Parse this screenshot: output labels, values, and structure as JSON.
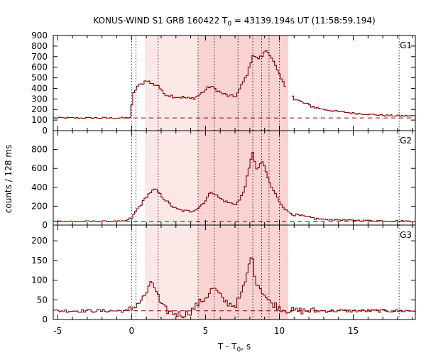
{
  "chart_data": {
    "type": "line",
    "title": {
      "prefix": "KONUS-WIND S1 GRB 160422 T",
      "sub": "0",
      "suffix": " = 43139.194s UT (11:58:59.194)"
    },
    "xlabel": {
      "prefix": "T - T",
      "sub": "0",
      "suffix": ", s"
    },
    "ylabel": "counts / 128 ms",
    "xlim": [
      -5.3,
      19.2
    ],
    "xticks": [
      -5,
      0,
      5,
      10,
      15
    ],
    "light_band": [
      0.9,
      10.6
    ],
    "dark_band": [
      4.5,
      10.6
    ],
    "vlines": [
      0.0,
      0.3,
      1.8,
      4.5,
      5.6,
      7.2,
      8.2,
      8.8,
      9.3,
      10.0,
      18.1
    ],
    "colors": {
      "line": "#8b0000",
      "light_band": "#fde8e8",
      "dark_band": "#f9d2d2"
    },
    "panels": [
      {
        "label": "G1",
        "ylim": [
          0,
          900
        ],
        "yticks": [
          0,
          100,
          200,
          300,
          400,
          500,
          600,
          700,
          800,
          900
        ],
        "background": 120,
        "breaks": [
          [
            10.5,
            10.8
          ]
        ],
        "knots": [
          [
            -5.3,
            120
          ],
          [
            -0.4,
            120
          ],
          [
            -0.1,
            125
          ],
          [
            0.0,
            220
          ],
          [
            0.15,
            360
          ],
          [
            0.4,
            420
          ],
          [
            0.7,
            440
          ],
          [
            1.0,
            480
          ],
          [
            1.4,
            440
          ],
          [
            1.8,
            430
          ],
          [
            2.1,
            360
          ],
          [
            2.4,
            340
          ],
          [
            3.0,
            320
          ],
          [
            3.5,
            315
          ],
          [
            4.0,
            300
          ],
          [
            4.4,
            320
          ],
          [
            4.8,
            360
          ],
          [
            5.3,
            420
          ],
          [
            5.6,
            400
          ],
          [
            6.0,
            360
          ],
          [
            6.5,
            330
          ],
          [
            7.0,
            320
          ],
          [
            7.2,
            360
          ],
          [
            7.6,
            470
          ],
          [
            7.9,
            560
          ],
          [
            8.2,
            720
          ],
          [
            8.5,
            680
          ],
          [
            8.8,
            700
          ],
          [
            9.1,
            760
          ],
          [
            9.4,
            720
          ],
          [
            9.7,
            620
          ],
          [
            10.0,
            520
          ],
          [
            10.3,
            440
          ],
          [
            10.5,
            400
          ],
          [
            10.8,
            380
          ],
          [
            11.0,
            300
          ],
          [
            11.5,
            270
          ],
          [
            12.0,
            240
          ],
          [
            13.0,
            200
          ],
          [
            14.0,
            180
          ],
          [
            15.0,
            165
          ],
          [
            16.0,
            155
          ],
          [
            17.0,
            145
          ],
          [
            18.0,
            140
          ],
          [
            19.2,
            140
          ]
        ],
        "noise": 16
      },
      {
        "label": "G2",
        "ylim": [
          0,
          1000
        ],
        "yticks": [
          0,
          200,
          400,
          600,
          800
        ],
        "background": 40,
        "breaks": [],
        "knots": [
          [
            -5.3,
            40
          ],
          [
            -0.5,
            40
          ],
          [
            0.0,
            70
          ],
          [
            0.3,
            150
          ],
          [
            0.7,
            230
          ],
          [
            1.0,
            300
          ],
          [
            1.3,
            350
          ],
          [
            1.6,
            380
          ],
          [
            1.9,
            330
          ],
          [
            2.2,
            280
          ],
          [
            2.6,
            220
          ],
          [
            3.0,
            170
          ],
          [
            3.5,
            150
          ],
          [
            4.0,
            145
          ],
          [
            4.5,
            180
          ],
          [
            5.0,
            260
          ],
          [
            5.4,
            360
          ],
          [
            5.7,
            320
          ],
          [
            6.0,
            280
          ],
          [
            6.5,
            240
          ],
          [
            7.0,
            220
          ],
          [
            7.3,
            260
          ],
          [
            7.6,
            360
          ],
          [
            7.9,
            560
          ],
          [
            8.2,
            780
          ],
          [
            8.5,
            560
          ],
          [
            8.8,
            690
          ],
          [
            9.1,
            560
          ],
          [
            9.4,
            420
          ],
          [
            9.7,
            340
          ],
          [
            10.0,
            250
          ],
          [
            10.5,
            150
          ],
          [
            11.0,
            110
          ],
          [
            12.0,
            80
          ],
          [
            13.0,
            60
          ],
          [
            15.0,
            50
          ],
          [
            19.2,
            40
          ]
        ],
        "noise": 14
      },
      {
        "label": "G3",
        "ylim": [
          0,
          240
        ],
        "yticks": [
          0,
          50,
          100,
          150,
          200
        ],
        "background": 22,
        "breaks": [],
        "knots": [
          [
            -5.3,
            22
          ],
          [
            -0.3,
            22
          ],
          [
            0.0,
            28
          ],
          [
            0.4,
            40
          ],
          [
            0.8,
            55
          ],
          [
            1.1,
            75
          ],
          [
            1.4,
            95
          ],
          [
            1.7,
            70
          ],
          [
            2.0,
            35
          ],
          [
            2.5,
            20
          ],
          [
            3.0,
            15
          ],
          [
            3.5,
            12
          ],
          [
            4.0,
            20
          ],
          [
            4.5,
            40
          ],
          [
            5.0,
            55
          ],
          [
            5.5,
            80
          ],
          [
            5.8,
            70
          ],
          [
            6.2,
            50
          ],
          [
            6.6,
            40
          ],
          [
            7.0,
            35
          ],
          [
            7.4,
            60
          ],
          [
            7.8,
            110
          ],
          [
            8.1,
            170
          ],
          [
            8.4,
            100
          ],
          [
            8.8,
            75
          ],
          [
            9.3,
            45
          ],
          [
            9.8,
            35
          ],
          [
            10.3,
            25
          ],
          [
            11.0,
            22
          ],
          [
            13.0,
            22
          ],
          [
            19.2,
            22
          ]
        ],
        "noise": 9
      }
    ]
  }
}
